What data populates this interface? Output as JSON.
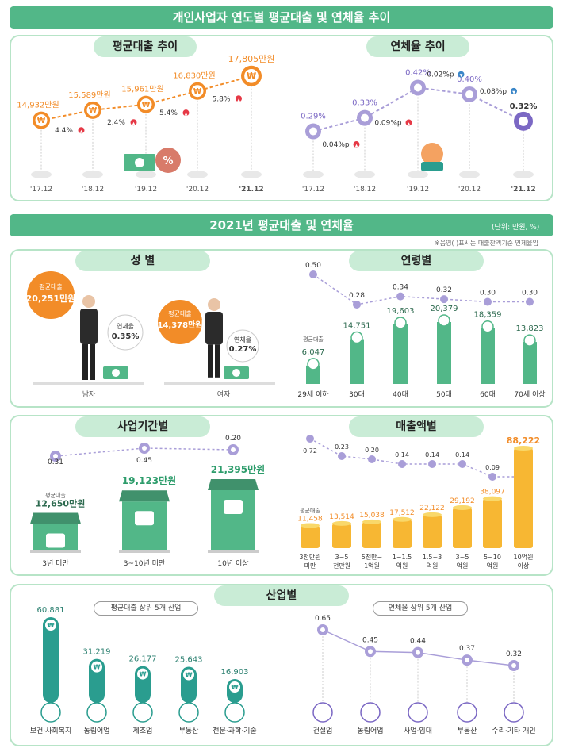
{
  "main_title": "개인사업자 연도별 평균대출 및 연체율 추이",
  "sec2_title": "2021년 평균대출 및 연체율",
  "unit_note": "(단위: 만원, %)",
  "sub_note": "※음영(    )표시는 대출잔액기준 연체율임",
  "loan_trend": {
    "title": "평균대출 추이",
    "type": "line",
    "x": [
      "'17.12",
      "'18.12",
      "'19.12",
      "'20.12",
      "'21.12"
    ],
    "values": [
      14932,
      15589,
      15961,
      16830,
      17805
    ],
    "labels": [
      "14,932만원",
      "15,589만원",
      "15,961만원",
      "16,830만원",
      "17,805만원"
    ],
    "growth": [
      "4.4%",
      "2.4%",
      "5.4%",
      "5.8%"
    ]
  },
  "delinq_trend": {
    "title": "연체율 추이",
    "type": "line",
    "x": [
      "'17.12",
      "'18.12",
      "'19.12",
      "'20.12",
      "'21.12"
    ],
    "values": [
      0.29,
      0.33,
      0.42,
      0.4,
      0.32
    ],
    "labels": [
      "0.29%",
      "0.33%",
      "0.42%",
      "0.40%",
      "0.32%"
    ],
    "changes": [
      "0.04%p",
      "0.09%p",
      "0.02%p",
      "0.08%p"
    ],
    "directions": [
      "up",
      "up",
      "down",
      "down"
    ]
  },
  "gender": {
    "title": "성 별",
    "male": {
      "label": "남자",
      "loan_label": "평균대출",
      "loan": "20,251만원",
      "rate_label": "연체율",
      "rate": "0.35%"
    },
    "female": {
      "label": "여자",
      "loan_label": "평균대출",
      "loan": "14,378만원",
      "rate_label": "연체율",
      "rate": "0.27%"
    }
  },
  "age": {
    "title": "연령별",
    "type": "bar",
    "categories": [
      "29세 이하",
      "30대",
      "40대",
      "50대",
      "60대",
      "70세 이상"
    ],
    "loan_label": "평균대출",
    "loan": [
      6047,
      14751,
      19603,
      20379,
      18359,
      13823
    ],
    "loan_labels": [
      "6,047",
      "14,751",
      "19,603",
      "20,379",
      "18,359",
      "13,823"
    ],
    "rate": [
      0.5,
      0.28,
      0.34,
      0.32,
      0.3,
      0.3
    ],
    "rate_labels": [
      "0.50",
      "0.28",
      "0.34",
      "0.32",
      "0.30",
      "0.30"
    ]
  },
  "period": {
    "title": "사업기간별",
    "type": "bar",
    "categories": [
      "3년 미만",
      "3~10년 미만",
      "10년 이상"
    ],
    "loan_label": "평균대출",
    "loan": [
      12650,
      19123,
      21395
    ],
    "loan_labels": [
      "12,650만원",
      "19,123만원",
      "21,395만원"
    ],
    "rate": [
      0.31,
      0.45,
      0.2
    ],
    "rate_labels": [
      "0.31",
      "0.45",
      "0.20"
    ]
  },
  "sales": {
    "title": "매출액별",
    "type": "bar",
    "categories": [
      [
        "3천만원",
        "미만"
      ],
      [
        "3~5",
        "천만원"
      ],
      [
        "5천만~",
        "1억원"
      ],
      [
        "1~1.5",
        "억원"
      ],
      [
        "1.5~3",
        "억원"
      ],
      [
        "3~5",
        "억원"
      ],
      [
        "5~10",
        "억원"
      ],
      [
        "10억원",
        "이상"
      ]
    ],
    "loan_label": "평균대출",
    "loan": [
      11458,
      13514,
      15038,
      17512,
      22122,
      29192,
      38097,
      88222
    ],
    "loan_labels": [
      "11,458",
      "13,514",
      "15,038",
      "17,512",
      "22,122",
      "29,192",
      "38,097",
      "88,222"
    ],
    "rate": [
      0.72,
      0.23,
      0.2,
      0.14,
      0.14,
      0.14,
      0.09,
      0.09
    ],
    "rate_labels": [
      "0.72",
      "0.23",
      "0.20",
      "0.14",
      "0.14",
      "0.14",
      "0.09",
      "0.09"
    ]
  },
  "industry": {
    "title": "산업별",
    "loan_top": {
      "title": "평균대출 상위 5개 산업",
      "type": "bar",
      "categories": [
        "보건·사회복지",
        "농림어업",
        "제조업",
        "부동산",
        "전문·과학·기술"
      ],
      "values": [
        60881,
        31219,
        26177,
        25643,
        16903
      ],
      "labels": [
        "60,881",
        "31,219",
        "26,177",
        "25,643",
        "16,903"
      ]
    },
    "rate_top": {
      "title": "연체율 상위 5개 산업",
      "type": "line",
      "categories": [
        "건설업",
        "농림어업",
        "사업·임대",
        "부동산",
        "수리·기타 개인"
      ],
      "values": [
        0.65,
        0.45,
        0.44,
        0.37,
        0.32
      ],
      "labels": [
        "0.65",
        "0.45",
        "0.44",
        "0.37",
        "0.32"
      ]
    }
  },
  "colors": {
    "green": "#52b788",
    "orange": "#f28c28",
    "purple": "#7b68c4",
    "lavender": "#a99ed8",
    "up": "#e63946",
    "down": "#3a86c8"
  }
}
